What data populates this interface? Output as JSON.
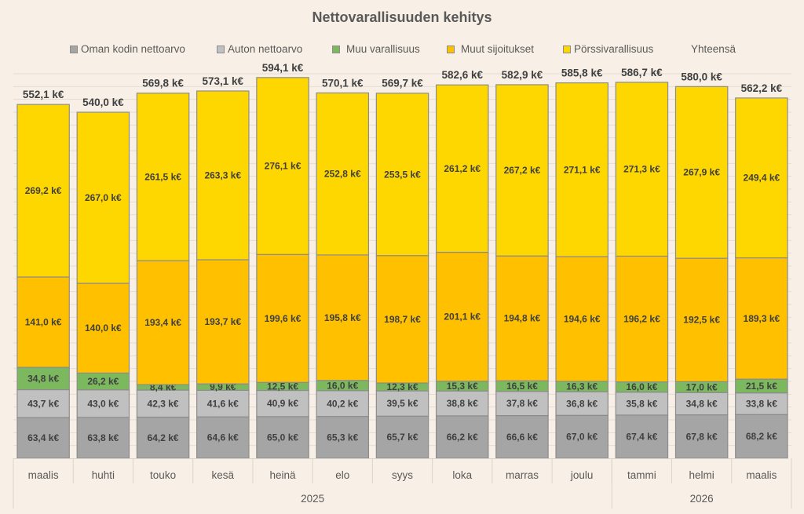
{
  "chart_data": {
    "type": "bar",
    "stacked": true,
    "title": "Nettovarallisuuden kehitys",
    "xlabel": "",
    "ylabel": "",
    "ylim": [
      0,
      600
    ],
    "grid": true,
    "grid_step": 20,
    "legend_position": "top",
    "value_unit_suffix": " k€",
    "categories": [
      "maalis",
      "huhti",
      "touko",
      "kesä",
      "heinä",
      "elo",
      "syys",
      "loka",
      "marras",
      "joulu",
      "tammi",
      "helmi",
      "maalis"
    ],
    "category_groups": [
      {
        "label": "2025",
        "count": 10
      },
      {
        "label": "2026",
        "count": 3
      }
    ],
    "series": [
      {
        "name": "Oman kodin nettoarvo",
        "color": "#a5a5a5",
        "labels": [
          "63,4 k€",
          "63,8 k€",
          "64,2 k€",
          "64,6 k€",
          "65,0 k€",
          "65,3 k€",
          "65,7 k€",
          "66,2 k€",
          "66,6 k€",
          "67,0 k€",
          "67,4 k€",
          "67,8 k€",
          "68,2 k€"
        ],
        "values": [
          63.4,
          63.8,
          64.2,
          64.6,
          65.0,
          65.3,
          65.7,
          66.2,
          66.6,
          67.0,
          67.4,
          67.8,
          68.2
        ]
      },
      {
        "name": "Auton nettoarvo",
        "color": "#c0c0c0",
        "labels": [
          "43,7 k€",
          "43,0 k€",
          "42,3 k€",
          "41,6 k€",
          "40,9 k€",
          "40,2 k€",
          "39,5 k€",
          "38,8 k€",
          "37,8 k€",
          "36,8 k€",
          "35,8 k€",
          "34,8 k€",
          "33,8 k€"
        ],
        "values": [
          43.7,
          43.0,
          42.3,
          41.6,
          40.9,
          40.2,
          39.5,
          38.8,
          37.8,
          36.8,
          35.8,
          34.8,
          33.8
        ]
      },
      {
        "name": "Muu varallisuus",
        "color": "#7cb85e",
        "labels": [
          "34,8 k€",
          "26,2 k€",
          "8,4 k€",
          "9,9 k€",
          "12,5 k€",
          "16,0 k€",
          "12,3 k€",
          "15,3 k€",
          "16,5 k€",
          "16,3 k€",
          "16,0 k€",
          "17,0 k€",
          "21,5 k€"
        ],
        "values": [
          34.8,
          26.2,
          8.4,
          9.9,
          12.5,
          16.0,
          12.3,
          15.3,
          16.5,
          16.3,
          16.0,
          17.0,
          21.5
        ]
      },
      {
        "name": "Muut sijoitukset",
        "color": "#ffc000",
        "labels": [
          "141,0 k€",
          "140,0 k€",
          "193,4 k€",
          "193,7 k€",
          "199,6 k€",
          "195,8 k€",
          "198,7 k€",
          "201,1 k€",
          "194,8 k€",
          "194,6 k€",
          "196,2 k€",
          "192,5 k€",
          "189,3 k€"
        ],
        "values": [
          141.0,
          140.0,
          193.4,
          193.7,
          199.6,
          195.8,
          198.7,
          201.1,
          194.8,
          194.6,
          196.2,
          192.5,
          189.3
        ]
      },
      {
        "name": "Pörssivarallisuus",
        "color": "#ffd700",
        "labels": [
          "269,2 k€",
          "267,0 k€",
          "261,5 k€",
          "263,3 k€",
          "276,1 k€",
          "252,8 k€",
          "253,5 k€",
          "261,2 k€",
          "267,2 k€",
          "271,1 k€",
          "271,3 k€",
          "267,9 k€",
          "249,4 k€"
        ],
        "values": [
          269.2,
          267.0,
          261.5,
          263.3,
          276.1,
          252.8,
          253.5,
          261.2,
          267.2,
          271.1,
          271.3,
          267.9,
          249.4
        ]
      }
    ],
    "totals": {
      "name": "Yhteensä",
      "labels": [
        "552,1 k€",
        "540,0 k€",
        "569,8 k€",
        "573,1 k€",
        "594,1 k€",
        "570,1 k€",
        "569,7 k€",
        "582,6 k€",
        "582,9 k€",
        "585,8 k€",
        "586,7 k€",
        "580,0 k€",
        "562,2 k€"
      ],
      "values": [
        552.1,
        540.0,
        569.8,
        573.1,
        594.1,
        570.1,
        569.7,
        582.6,
        582.9,
        585.8,
        586.7,
        580.0,
        562.2
      ]
    }
  }
}
